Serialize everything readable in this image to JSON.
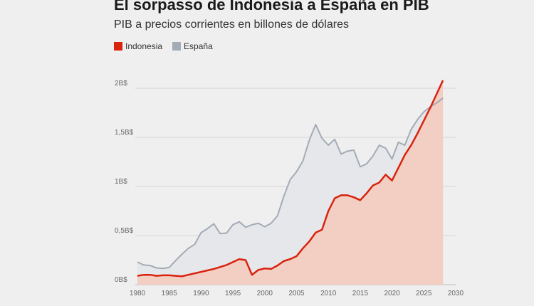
{
  "header": {
    "title": "El sorpasso de Indonesia a España en PIB",
    "subtitle": "PIB a precios corrientes en billones de dólares"
  },
  "legend": {
    "items": [
      {
        "label": "Indonesia",
        "color": "#d9230f"
      },
      {
        "label": "España",
        "color": "#a3abb5"
      }
    ]
  },
  "chart_data": {
    "type": "area",
    "x": [
      1980,
      1981,
      1982,
      1983,
      1984,
      1985,
      1986,
      1987,
      1988,
      1989,
      1990,
      1991,
      1992,
      1993,
      1994,
      1995,
      1996,
      1997,
      1998,
      1999,
      2000,
      2001,
      2002,
      2003,
      2004,
      2005,
      2006,
      2007,
      2008,
      2009,
      2010,
      2011,
      2012,
      2013,
      2014,
      2015,
      2016,
      2017,
      2018,
      2019,
      2020,
      2021,
      2022,
      2023,
      2024,
      2025,
      2026,
      2027,
      2028
    ],
    "series": [
      {
        "name": "Indonesia",
        "color": "#d9230f",
        "fill": "#f3cfc3",
        "values": [
          0.09,
          0.1,
          0.1,
          0.09,
          0.095,
          0.095,
          0.09,
          0.085,
          0.1,
          0.115,
          0.13,
          0.145,
          0.16,
          0.18,
          0.2,
          0.23,
          0.26,
          0.25,
          0.1,
          0.15,
          0.165,
          0.16,
          0.195,
          0.24,
          0.26,
          0.29,
          0.37,
          0.44,
          0.53,
          0.56,
          0.75,
          0.88,
          0.91,
          0.91,
          0.89,
          0.86,
          0.93,
          1.01,
          1.04,
          1.12,
          1.06,
          1.19,
          1.32,
          1.42,
          1.54,
          1.67,
          1.8,
          1.94,
          2.08
        ]
      },
      {
        "name": "España",
        "color": "#a3abb5",
        "fill": "#e6e7ea",
        "values": [
          0.23,
          0.2,
          0.195,
          0.17,
          0.165,
          0.175,
          0.245,
          0.31,
          0.37,
          0.41,
          0.53,
          0.57,
          0.62,
          0.52,
          0.525,
          0.61,
          0.64,
          0.585,
          0.61,
          0.625,
          0.59,
          0.625,
          0.7,
          0.9,
          1.07,
          1.15,
          1.26,
          1.47,
          1.63,
          1.49,
          1.42,
          1.48,
          1.33,
          1.36,
          1.37,
          1.2,
          1.23,
          1.31,
          1.42,
          1.39,
          1.28,
          1.45,
          1.42,
          1.58,
          1.68,
          1.76,
          1.81,
          1.85,
          1.9
        ]
      }
    ],
    "xticks": [
      1980,
      1985,
      1990,
      1995,
      2000,
      2005,
      2010,
      2015,
      2020,
      2025,
      2030
    ],
    "xlim": [
      1980,
      2030
    ],
    "ylim": [
      0,
      2
    ],
    "yticks": [
      {
        "value": 0,
        "label": "0B$"
      },
      {
        "value": 0.5,
        "label": "0,5B$"
      },
      {
        "value": 1,
        "label": "1B$"
      },
      {
        "value": 1.5,
        "label": "1,5B$"
      },
      {
        "value": 2,
        "label": "2B$"
      }
    ],
    "grid": "horizontal"
  }
}
